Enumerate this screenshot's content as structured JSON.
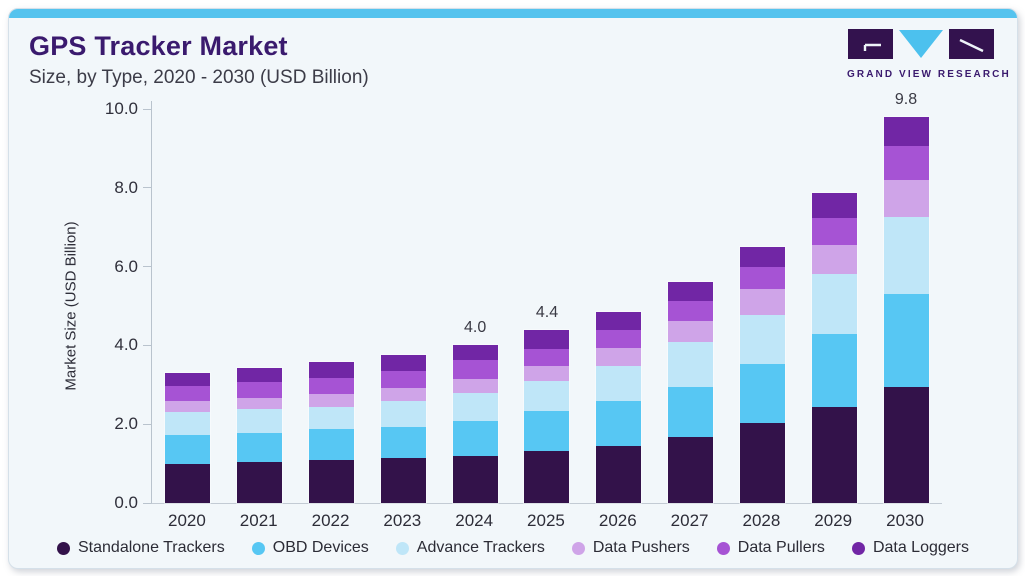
{
  "header": {
    "title": "GPS Tracker Market",
    "subtitle": "Size, by Type, 2020 - 2030 (USD Billion)"
  },
  "logo": {
    "text": "GRAND VIEW RESEARCH",
    "icon": "gvr-logo-mark",
    "mark_dark_color": "#33124e",
    "mark_cyan_color": "#4cc1ee"
  },
  "chart_data": {
    "type": "bar",
    "stacked": true,
    "grid": false,
    "legend_position": "bottom",
    "ylabel": "Market Size (USD Billion)",
    "ylim": [
      0,
      10
    ],
    "yticks": [
      "0.0",
      "2.0",
      "4.0",
      "6.0",
      "8.0",
      "10.0"
    ],
    "categories": [
      "2020",
      "2021",
      "2022",
      "2023",
      "2024",
      "2025",
      "2026",
      "2027",
      "2028",
      "2029",
      "2030"
    ],
    "bar_labels": [
      "",
      "",
      "",
      "",
      "4.0",
      "4.4",
      "",
      "",
      "",
      "",
      "9.8"
    ],
    "series": [
      {
        "name": "Standalone Trackers",
        "color": "#33124a",
        "values": [
          1.0,
          1.05,
          1.1,
          1.14,
          1.2,
          1.33,
          1.45,
          1.67,
          2.03,
          2.43,
          2.95
        ]
      },
      {
        "name": "OBD Devices",
        "color": "#57c7f3",
        "values": [
          0.72,
          0.73,
          0.77,
          0.8,
          0.88,
          1.0,
          1.13,
          1.28,
          1.51,
          1.85,
          2.35
        ]
      },
      {
        "name": "Advance Trackers",
        "color": "#bfe6f8",
        "values": [
          0.6,
          0.6,
          0.58,
          0.65,
          0.7,
          0.78,
          0.9,
          1.13,
          1.22,
          1.54,
          1.95
        ]
      },
      {
        "name": "Data Pushers",
        "color": "#cfa4e8",
        "values": [
          0.28,
          0.29,
          0.32,
          0.34,
          0.38,
          0.36,
          0.45,
          0.55,
          0.66,
          0.74,
          0.95
        ]
      },
      {
        "name": "Data Pullers",
        "color": "#a653d4",
        "values": [
          0.38,
          0.4,
          0.41,
          0.42,
          0.46,
          0.45,
          0.46,
          0.5,
          0.57,
          0.67,
          0.85
        ]
      },
      {
        "name": "Data Loggers",
        "color": "#7126a5",
        "values": [
          0.33,
          0.36,
          0.4,
          0.4,
          0.38,
          0.48,
          0.45,
          0.47,
          0.51,
          0.64,
          0.75
        ]
      }
    ]
  },
  "colors": {
    "card_background": "#f2f7fa",
    "top_strip": "#55c3ee",
    "title_text": "#3a1a6e",
    "axis_line": "#b9c3cd"
  }
}
